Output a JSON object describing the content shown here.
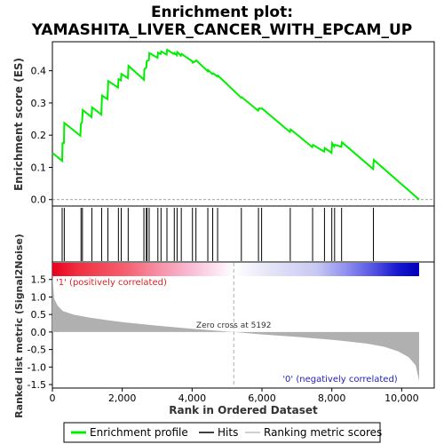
{
  "chart_data": {
    "type": "line",
    "title": "Enrichment plot:\nYAMASHITA_LIVER_CANCER_WITH_EPCAM_UP",
    "xlabel": "Rank in Ordered Dataset",
    "ylabel_top": "Enrichment score (ES)",
    "ylabel_bottom": "Ranked list metric (Signal2Noise)",
    "n_genes": 10500,
    "x_ticks": [
      0,
      2000,
      4000,
      6000,
      8000,
      10000
    ],
    "es_ylim": [
      -0.02,
      0.49
    ],
    "es_yticks": [
      0.0,
      0.1,
      0.2,
      0.3,
      0.4
    ],
    "metric_ylim": [
      -1.6,
      2.0
    ],
    "metric_yticks": [
      -1.5,
      -1.0,
      -0.5,
      0.0,
      0.5,
      1.0,
      1.5
    ],
    "zero_cross": 5192,
    "zero_cross_label": "Zero cross at 5192",
    "pos_label": "'1' (positively correlated)",
    "neg_label": "'0' (negatively correlated)",
    "colors": {
      "es_line": "#00ee00",
      "hits": "#000000",
      "metric_fill": "#b0b0b0"
    },
    "es_curve": {
      "x": [
        0,
        280,
        290,
        330,
        340,
        800,
        815,
        850,
        870,
        1120,
        1140,
        1400,
        1420,
        1580,
        1600,
        1880,
        1895,
        1960,
        1975,
        2160,
        2180,
        2620,
        2635,
        2690,
        2700,
        2760,
        2775,
        3010,
        3025,
        3100,
        3115,
        3270,
        3285,
        3480,
        3495,
        3560,
        3575,
        3680,
        3700,
        4000,
        4020,
        4100,
        4120,
        4450,
        4460,
        4580,
        4600,
        4720,
        4740,
        5400,
        5420,
        5890,
        5910,
        5980,
        6000,
        6800,
        6820,
        7440,
        7460,
        7780,
        7800,
        7990,
        8010,
        8070,
        8090,
        8270,
        8290,
        9180,
        9200,
        10500
      ],
      "y": [
        0.145,
        0.12,
        0.175,
        0.175,
        0.238,
        0.198,
        0.235,
        0.24,
        0.278,
        0.256,
        0.286,
        0.264,
        0.323,
        0.312,
        0.368,
        0.348,
        0.374,
        0.37,
        0.39,
        0.377,
        0.415,
        0.372,
        0.405,
        0.41,
        0.43,
        0.433,
        0.455,
        0.44,
        0.456,
        0.452,
        0.46,
        0.45,
        0.465,
        0.452,
        0.455,
        0.448,
        0.458,
        0.447,
        0.452,
        0.43,
        0.425,
        0.43,
        0.432,
        0.398,
        0.402,
        0.39,
        0.392,
        0.382,
        0.385,
        0.317,
        0.318,
        0.276,
        0.283,
        0.282,
        0.283,
        0.21,
        0.218,
        0.163,
        0.17,
        0.149,
        0.16,
        0.145,
        0.175,
        0.165,
        0.17,
        0.164,
        0.178,
        0.095,
        0.123,
        0.0
      ]
    },
    "hits": [
      280,
      340,
      820,
      860,
      1130,
      1410,
      1590,
      1890,
      1970,
      2170,
      2620,
      2690,
      2710,
      2770,
      3020,
      3110,
      3280,
      3490,
      3570,
      3690,
      4010,
      4110,
      4450,
      4590,
      4730,
      5410,
      5900,
      5990,
      6810,
      7450,
      7790,
      8000,
      8080,
      8280,
      9190
    ],
    "metric_curve": {
      "x": [
        0,
        50,
        150,
        300,
        600,
        1000,
        1500,
        2000,
        3000,
        4000,
        5192,
        6000,
        7000,
        8000,
        9000,
        9500,
        9900,
        10200,
        10400,
        10480,
        10500
      ],
      "y": [
        1.65,
        0.95,
        0.75,
        0.6,
        0.5,
        0.42,
        0.35,
        0.28,
        0.18,
        0.09,
        0.0,
        -0.07,
        -0.14,
        -0.22,
        -0.33,
        -0.42,
        -0.55,
        -0.72,
        -0.95,
        -1.3,
        -1.4
      ]
    },
    "legend": {
      "items": [
        {
          "label": "Enrichment profile",
          "kind": "line",
          "color": "#00ee00"
        },
        {
          "label": "Hits",
          "kind": "line",
          "color": "#000000"
        },
        {
          "label": "Ranking metric scores",
          "kind": "line",
          "color": "#c0c0c0"
        }
      ]
    }
  }
}
